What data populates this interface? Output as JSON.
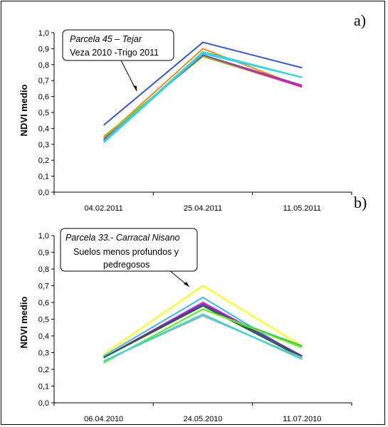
{
  "chart_data": [
    {
      "type": "line",
      "panel_label": "a)",
      "title": "",
      "xlabel": "",
      "ylabel": "NDVI medio",
      "categories": [
        "04.02.2011",
        "25.04.2011",
        "11.05.2011"
      ],
      "ylim": [
        0,
        1
      ],
      "yticks": [
        "0,0",
        "0,1",
        "0,2",
        "0,3",
        "0,4",
        "0,5",
        "0,6",
        "0,7",
        "0,8",
        "0,9",
        "1,0"
      ],
      "grid": false,
      "annotation": {
        "line1": "Parcela 45 – Tejar",
        "line2": "Veza 2010 -Trigo 2011"
      },
      "series": [
        {
          "color": "#3355dd",
          "values": [
            0.42,
            0.94,
            0.78
          ]
        },
        {
          "color": "#ff8800",
          "values": [
            0.34,
            0.9,
            0.66
          ]
        },
        {
          "color": "#99cc00",
          "values": [
            0.35,
            0.85,
            0.66
          ]
        },
        {
          "color": "#ff00cc",
          "values": [
            0.33,
            0.86,
            0.66
          ]
        },
        {
          "color": "#8844aa",
          "values": [
            0.33,
            0.86,
            0.67
          ]
        },
        {
          "color": "#33ccff",
          "values": [
            0.31,
            0.87,
            0.72
          ]
        },
        {
          "color": "#22dddd",
          "values": [
            0.32,
            0.88,
            0.72
          ]
        }
      ]
    },
    {
      "type": "line",
      "panel_label": "b)",
      "title": "",
      "xlabel": "",
      "ylabel": "NDVI medio",
      "categories": [
        "06.04.2010",
        "24.05.2010",
        "11.07.2010"
      ],
      "ylim": [
        0,
        1
      ],
      "yticks": [
        "0,0",
        "0,1",
        "0,2",
        "0,3",
        "0,4",
        "0,5",
        "0,6",
        "0,7",
        "0,8",
        "0,9",
        "1,0"
      ],
      "grid": false,
      "annotation": {
        "line1": "Parcela 33.- Carracal Nisano",
        "line2": "Suelos menos profundos y",
        "line3": "pedregosos"
      },
      "series": [
        {
          "color": "#ffff00",
          "values": [
            0.29,
            0.7,
            0.34
          ]
        },
        {
          "color": "#33bbee",
          "values": [
            0.28,
            0.63,
            0.27
          ]
        },
        {
          "color": "#ff00ff",
          "values": [
            0.27,
            0.6,
            0.28
          ]
        },
        {
          "color": "#3344aa",
          "values": [
            0.27,
            0.59,
            0.28
          ]
        },
        {
          "color": "#226622",
          "values": [
            0.27,
            0.58,
            0.27
          ]
        },
        {
          "color": "#22cc44",
          "values": [
            0.24,
            0.56,
            0.34
          ]
        },
        {
          "color": "#66ee22",
          "values": [
            0.24,
            0.56,
            0.33
          ]
        },
        {
          "color": "#aaaaaa",
          "values": [
            0.25,
            0.52,
            0.27
          ]
        },
        {
          "color": "#22dddd",
          "values": [
            0.25,
            0.53,
            0.26
          ]
        }
      ]
    }
  ]
}
